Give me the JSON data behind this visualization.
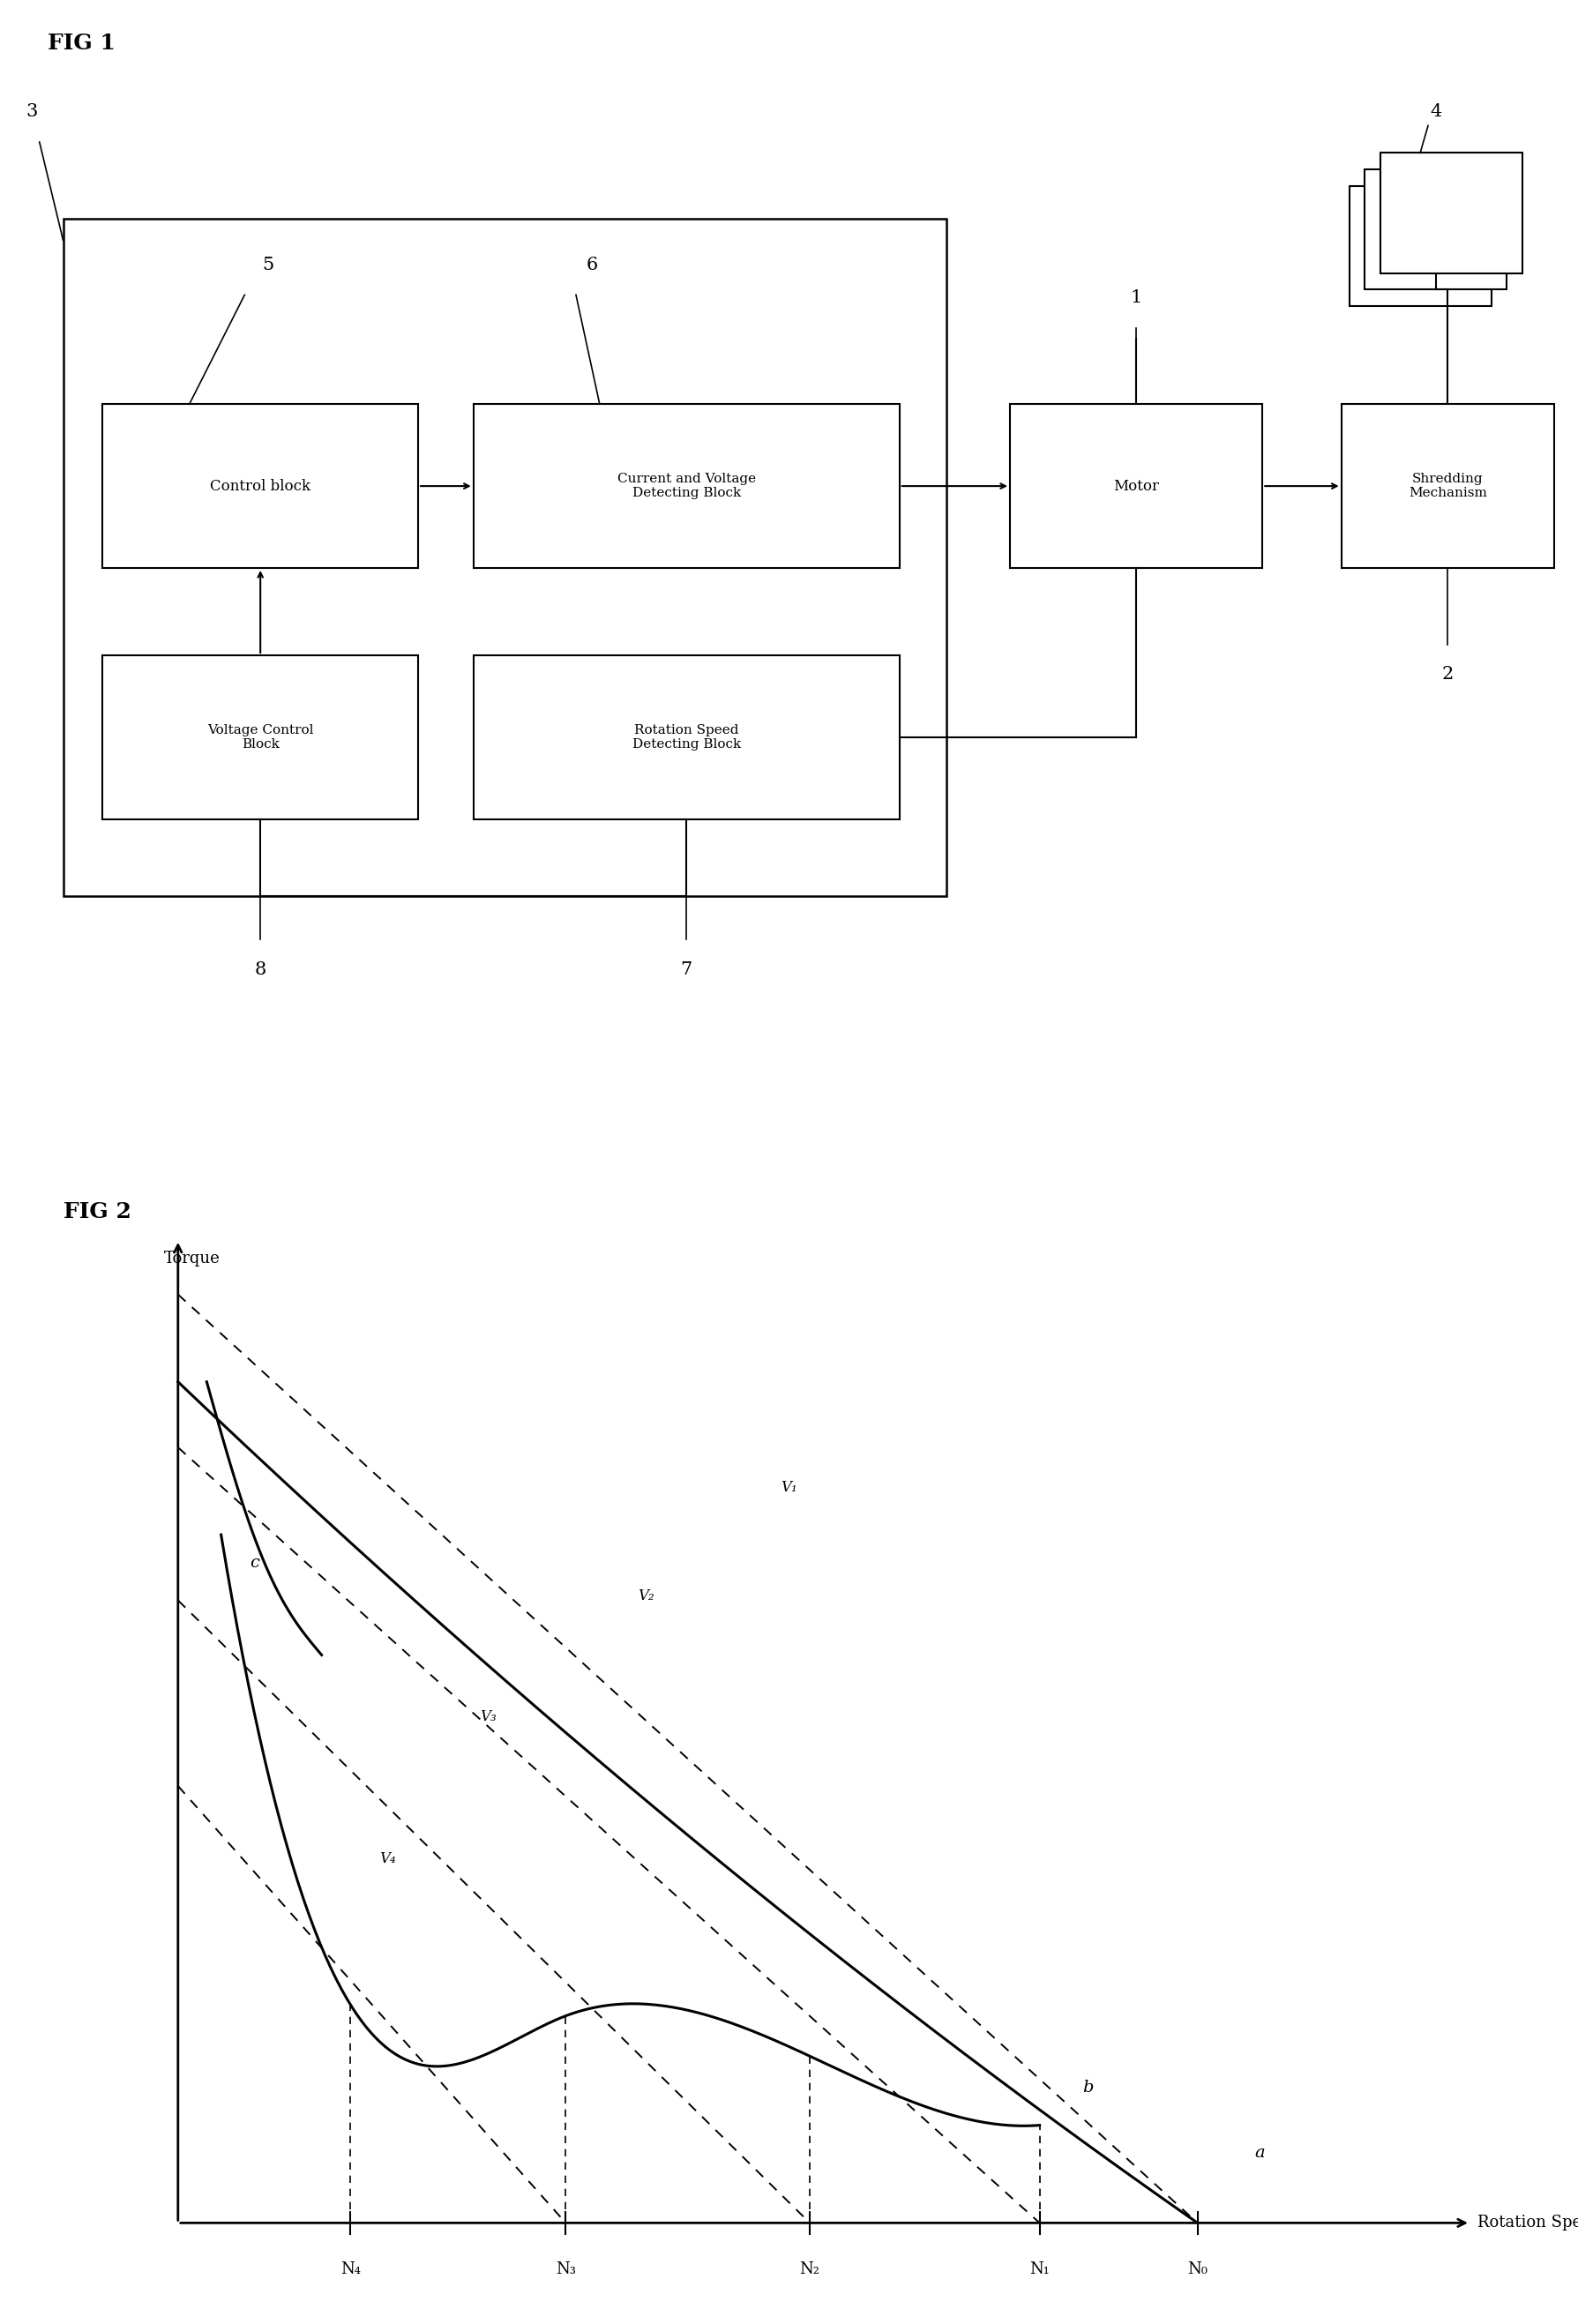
{
  "fig1_title": "FIG 1",
  "fig2_title": "FIG 2",
  "background_color": "#ffffff",
  "line_color": "#000000",
  "fig2_xlabel": "Rotation Speed",
  "fig2_ylabel": "Torque",
  "N_labels": [
    "N₄",
    "N₃",
    "N₂",
    "N₁",
    "N₀"
  ],
  "V_labels": [
    "V₁",
    "V₂",
    "V₃",
    "V₄"
  ],
  "curve_a_label": "a",
  "curve_b_label": "b",
  "curve_c_label": "c"
}
